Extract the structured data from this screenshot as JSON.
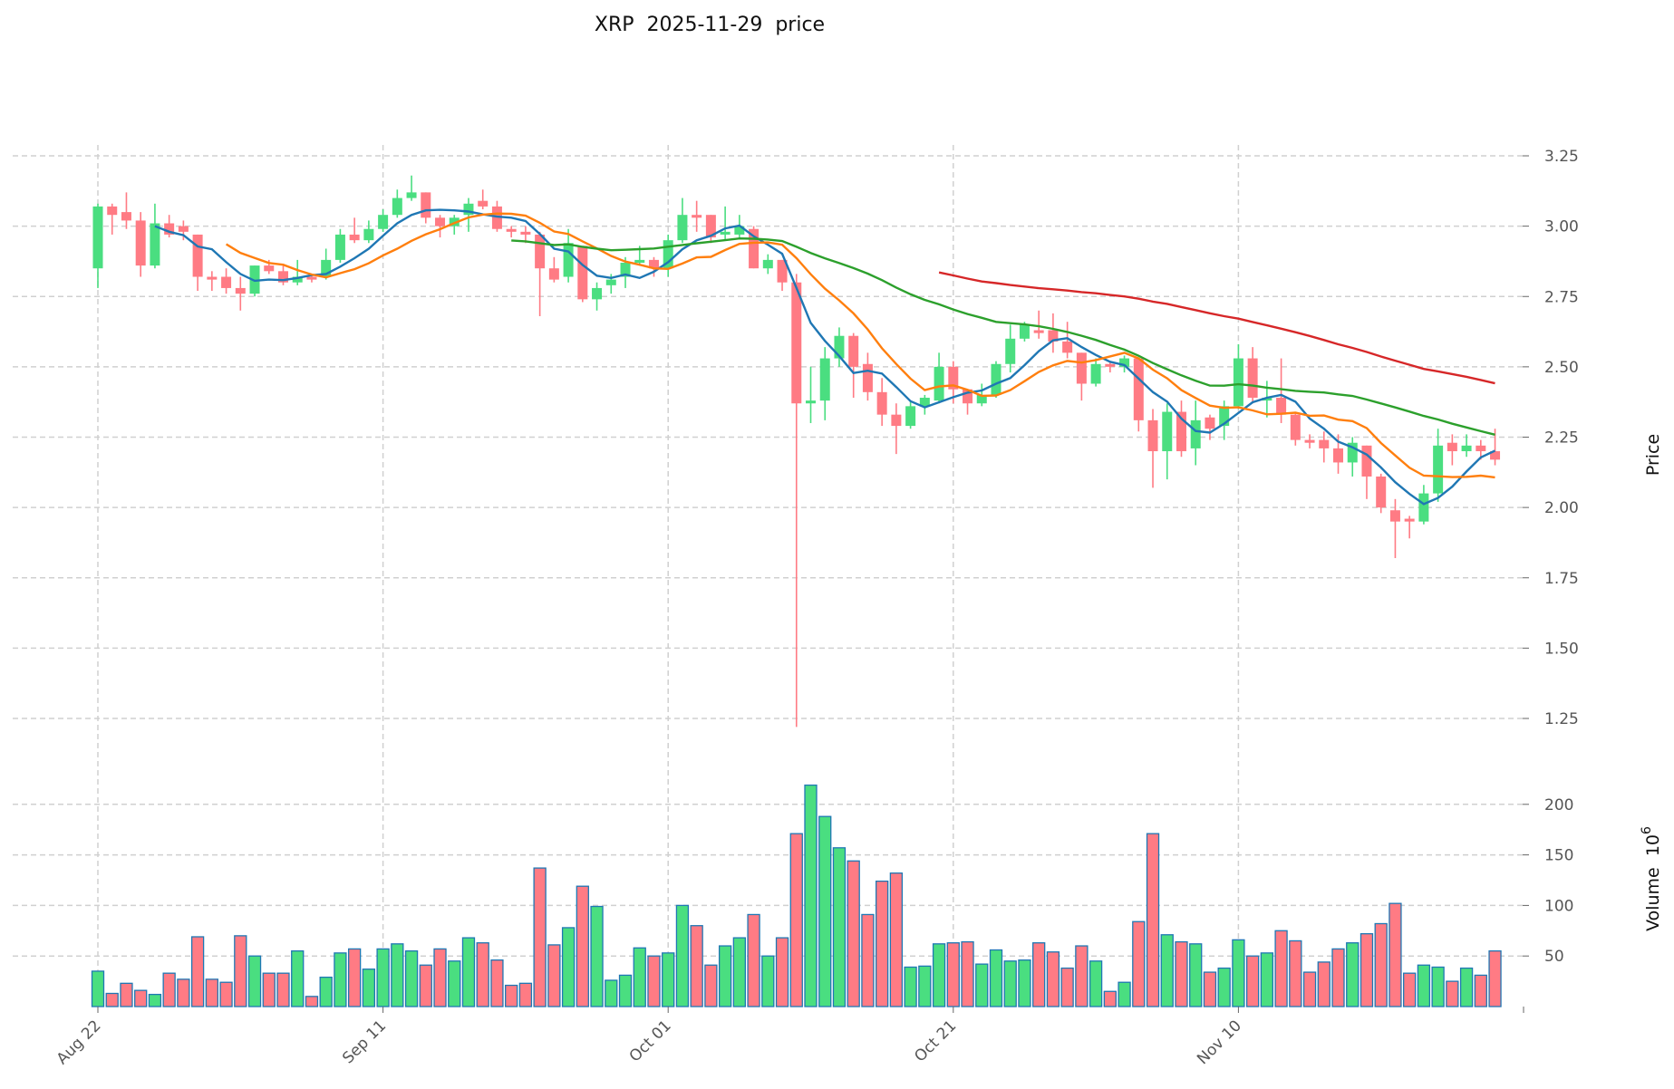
{
  "chart_data": {
    "type": "candlestick",
    "title": "XRP  2025-11-29  price",
    "symbol": "XRP",
    "ylabel": "Price",
    "volume_label": "Volume  10",
    "volume_exponent": "6",
    "start_date": "2025-08-22",
    "ylim": [
      1.15,
      3.3
    ],
    "volume_ylim": [
      0,
      225
    ],
    "yticks": [
      "1.25",
      "1.50",
      "1.75",
      "2.00",
      "2.25",
      "2.50",
      "2.75",
      "3.00",
      "3.25"
    ],
    "volume_ticks": [
      "50",
      "100",
      "150",
      "200"
    ],
    "xticks": [
      {
        "index": 0,
        "label": "Aug 22"
      },
      {
        "index": 20,
        "label": "Sep 11"
      },
      {
        "index": 40,
        "label": "Oct 01"
      },
      {
        "index": 60,
        "label": "Oct 21"
      },
      {
        "index": 80,
        "label": "Nov 10"
      }
    ],
    "grid": true,
    "colors": {
      "up": "#4ade80",
      "down": "#ff7b84",
      "volume_edge": "#1f77b4"
    },
    "moving_averages": [
      {
        "period": 5,
        "color": "#1f77b4"
      },
      {
        "period": 10,
        "color": "#ff7f0e"
      },
      {
        "period": 30,
        "color": "#2ca02c"
      },
      {
        "period": 60,
        "color": "#d62728"
      }
    ],
    "ohlc": [
      [
        2.85,
        3.08,
        2.78,
        3.07
      ],
      [
        3.07,
        3.08,
        2.97,
        3.04
      ],
      [
        3.05,
        3.12,
        2.99,
        3.02
      ],
      [
        3.02,
        3.05,
        2.82,
        2.86
      ],
      [
        2.86,
        3.08,
        2.85,
        3.01
      ],
      [
        3.01,
        3.04,
        2.96,
        2.97
      ],
      [
        3.0,
        3.02,
        2.95,
        2.98
      ],
      [
        2.97,
        2.97,
        2.77,
        2.82
      ],
      [
        2.82,
        2.84,
        2.77,
        2.81
      ],
      [
        2.82,
        2.85,
        2.76,
        2.78
      ],
      [
        2.78,
        2.82,
        2.7,
        2.76
      ],
      [
        2.76,
        2.86,
        2.75,
        2.86
      ],
      [
        2.86,
        2.88,
        2.83,
        2.84
      ],
      [
        2.84,
        2.86,
        2.79,
        2.8
      ],
      [
        2.8,
        2.88,
        2.79,
        2.82
      ],
      [
        2.82,
        2.83,
        2.8,
        2.81
      ],
      [
        2.82,
        2.92,
        2.81,
        2.88
      ],
      [
        2.88,
        2.99,
        2.87,
        2.97
      ],
      [
        2.97,
        3.03,
        2.94,
        2.95
      ],
      [
        2.95,
        3.02,
        2.94,
        2.99
      ],
      [
        2.99,
        3.06,
        2.98,
        3.04
      ],
      [
        3.04,
        3.13,
        3.03,
        3.1
      ],
      [
        3.1,
        3.18,
        3.09,
        3.12
      ],
      [
        3.12,
        3.12,
        3.01,
        3.03
      ],
      [
        3.03,
        3.04,
        2.96,
        3.0
      ],
      [
        3.0,
        3.04,
        2.97,
        3.03
      ],
      [
        3.04,
        3.1,
        2.98,
        3.08
      ],
      [
        3.09,
        3.13,
        3.06,
        3.07
      ],
      [
        3.07,
        3.09,
        2.98,
        2.99
      ],
      [
        2.99,
        3.0,
        2.96,
        2.98
      ],
      [
        2.98,
        3.0,
        2.94,
        2.97
      ],
      [
        2.97,
        2.98,
        2.68,
        2.85
      ],
      [
        2.85,
        2.89,
        2.8,
        2.81
      ],
      [
        2.82,
        2.99,
        2.8,
        2.94
      ],
      [
        2.93,
        2.93,
        2.73,
        2.74
      ],
      [
        2.74,
        2.8,
        2.7,
        2.78
      ],
      [
        2.79,
        2.83,
        2.76,
        2.81
      ],
      [
        2.82,
        2.89,
        2.78,
        2.87
      ],
      [
        2.87,
        2.93,
        2.86,
        2.88
      ],
      [
        2.88,
        2.89,
        2.82,
        2.85
      ],
      [
        2.85,
        2.97,
        2.82,
        2.95
      ],
      [
        2.95,
        3.1,
        2.94,
        3.04
      ],
      [
        3.04,
        3.09,
        2.98,
        3.03
      ],
      [
        3.04,
        3.04,
        2.94,
        2.96
      ],
      [
        2.97,
        3.07,
        2.95,
        2.98
      ],
      [
        2.97,
        3.04,
        2.96,
        3.0
      ],
      [
        2.99,
        3.0,
        2.85,
        2.85
      ],
      [
        2.85,
        2.9,
        2.83,
        2.88
      ],
      [
        2.88,
        2.88,
        2.77,
        2.8
      ],
      [
        2.8,
        2.83,
        1.22,
        2.37
      ],
      [
        2.37,
        2.5,
        2.3,
        2.38
      ],
      [
        2.38,
        2.57,
        2.31,
        2.53
      ],
      [
        2.53,
        2.64,
        2.5,
        2.61
      ],
      [
        2.61,
        2.62,
        2.39,
        2.5
      ],
      [
        2.51,
        2.55,
        2.38,
        2.41
      ],
      [
        2.41,
        2.46,
        2.29,
        2.33
      ],
      [
        2.33,
        2.37,
        2.19,
        2.29
      ],
      [
        2.29,
        2.38,
        2.28,
        2.36
      ],
      [
        2.36,
        2.4,
        2.33,
        2.39
      ],
      [
        2.38,
        2.55,
        2.37,
        2.5
      ],
      [
        2.5,
        2.52,
        2.37,
        2.42
      ],
      [
        2.42,
        2.42,
        2.33,
        2.37
      ],
      [
        2.37,
        2.44,
        2.36,
        2.4
      ],
      [
        2.4,
        2.52,
        2.39,
        2.51
      ],
      [
        2.51,
        2.65,
        2.48,
        2.6
      ],
      [
        2.6,
        2.66,
        2.59,
        2.65
      ],
      [
        2.63,
        2.7,
        2.6,
        2.62
      ],
      [
        2.63,
        2.69,
        2.55,
        2.59
      ],
      [
        2.59,
        2.66,
        2.53,
        2.55
      ],
      [
        2.55,
        2.55,
        2.38,
        2.44
      ],
      [
        2.44,
        2.53,
        2.43,
        2.51
      ],
      [
        2.51,
        2.52,
        2.48,
        2.5
      ],
      [
        2.5,
        2.54,
        2.48,
        2.53
      ],
      [
        2.53,
        2.53,
        2.27,
        2.31
      ],
      [
        2.31,
        2.35,
        2.07,
        2.2
      ],
      [
        2.2,
        2.37,
        2.1,
        2.34
      ],
      [
        2.34,
        2.38,
        2.18,
        2.2
      ],
      [
        2.21,
        2.38,
        2.15,
        2.31
      ],
      [
        2.32,
        2.33,
        2.24,
        2.28
      ],
      [
        2.29,
        2.38,
        2.24,
        2.36
      ],
      [
        2.36,
        2.58,
        2.35,
        2.53
      ],
      [
        2.53,
        2.57,
        2.37,
        2.39
      ],
      [
        2.38,
        2.45,
        2.32,
        2.39
      ],
      [
        2.39,
        2.53,
        2.3,
        2.33
      ],
      [
        2.33,
        2.34,
        2.22,
        2.24
      ],
      [
        2.24,
        2.26,
        2.21,
        2.23
      ],
      [
        2.24,
        2.27,
        2.16,
        2.21
      ],
      [
        2.21,
        2.26,
        2.12,
        2.16
      ],
      [
        2.16,
        2.25,
        2.11,
        2.23
      ],
      [
        2.22,
        2.22,
        2.03,
        2.11
      ],
      [
        2.11,
        2.12,
        1.98,
        2.0
      ],
      [
        1.99,
        2.03,
        1.82,
        1.95
      ],
      [
        1.96,
        1.97,
        1.89,
        1.95
      ],
      [
        1.95,
        2.08,
        1.94,
        2.05
      ],
      [
        2.05,
        2.28,
        2.02,
        2.22
      ],
      [
        2.23,
        2.26,
        2.15,
        2.2
      ],
      [
        2.2,
        2.26,
        2.18,
        2.22
      ],
      [
        2.22,
        2.24,
        2.17,
        2.2
      ],
      [
        2.2,
        2.28,
        2.15,
        2.17
      ]
    ],
    "volume": [
      35,
      13,
      23,
      16,
      12,
      33,
      27,
      69,
      27,
      24,
      70,
      50,
      33,
      33,
      55,
      10,
      29,
      53,
      57,
      37,
      57,
      62,
      55,
      41,
      57,
      45,
      68,
      63,
      46,
      21,
      23,
      137,
      61,
      78,
      119,
      99,
      26,
      31,
      58,
      50,
      53,
      100,
      80,
      41,
      60,
      68,
      91,
      50,
      68,
      171,
      219,
      188,
      157,
      144,
      91,
      124,
      132,
      39,
      40,
      62,
      63,
      64,
      42,
      56,
      45,
      46,
      63,
      54,
      38,
      60,
      45,
      15,
      24,
      84,
      171,
      71,
      64,
      62,
      34,
      38,
      66,
      50,
      53,
      75,
      65,
      34,
      44,
      57,
      63,
      72,
      82,
      102,
      33,
      41,
      39,
      25,
      38,
      31,
      55
    ]
  }
}
